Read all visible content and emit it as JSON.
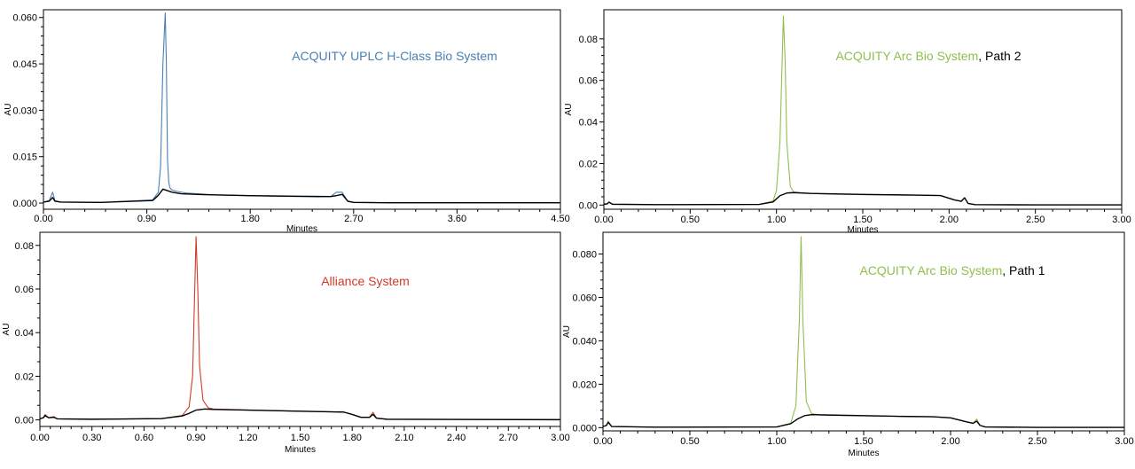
{
  "chart_data": [
    {
      "type": "line",
      "id": "tl",
      "annotation": [
        {
          "text": "ACQUITY UPLC H-Class Bio System",
          "color": "#4a7fb5"
        }
      ],
      "xlabel": "Minutes",
      "ylabel": "AU",
      "xlim": [
        0,
        4.5
      ],
      "ylim": [
        -0.002,
        0.0625
      ],
      "xticks": [
        "0.00",
        "0.90",
        "1.80",
        "2.70",
        "3.60",
        "4.50"
      ],
      "xtick_values": [
        0,
        0.9,
        1.8,
        2.7,
        3.6,
        4.5
      ],
      "yticks": [
        "0.000",
        "0.015",
        "0.030",
        "0.045",
        "0.060"
      ],
      "ytick_values": [
        0,
        0.015,
        0.03,
        0.045,
        0.06
      ],
      "series": [
        {
          "color": "#4a7fb5",
          "x": [
            0,
            0.05,
            0.08,
            0.1,
            0.15,
            0.5,
            0.95,
            1.0,
            1.02,
            1.04,
            1.06,
            1.07,
            1.08,
            1.09,
            1.1,
            1.12,
            1.16,
            1.25,
            1.5,
            2.0,
            2.4,
            2.5,
            2.55,
            2.6,
            2.65,
            2.7,
            3.0,
            3.5,
            4.0,
            4.5
          ],
          "y": [
            0.0003,
            0.0008,
            0.0035,
            0.0008,
            0.0003,
            0.0002,
            0.001,
            0.0035,
            0.012,
            0.045,
            0.0615,
            0.045,
            0.014,
            0.007,
            0.005,
            0.0042,
            0.0038,
            0.0032,
            0.0026,
            0.0022,
            0.002,
            0.0021,
            0.0035,
            0.0035,
            0.0005,
            0.0002,
            0.0001,
            0.0001,
            0.0001,
            0.0001
          ]
        },
        {
          "color": "#000000",
          "x": [
            0,
            0.05,
            0.08,
            0.1,
            0.15,
            0.5,
            0.95,
            1.0,
            1.04,
            1.08,
            1.12,
            1.2,
            1.4,
            1.8,
            2.2,
            2.5,
            2.55,
            2.6,
            2.65,
            2.7,
            3.0,
            3.5,
            4.0,
            4.5
          ],
          "y": [
            0.0003,
            0.0006,
            0.0018,
            0.0006,
            0.0003,
            0.0002,
            0.0008,
            0.0025,
            0.0045,
            0.004,
            0.0035,
            0.003,
            0.0027,
            0.0024,
            0.0022,
            0.0021,
            0.0024,
            0.0028,
            0.0006,
            0.0002,
            0.0001,
            0.0001,
            0.0001,
            0.0001
          ]
        }
      ]
    },
    {
      "type": "line",
      "id": "tr",
      "annotation": [
        {
          "text": "ACQUITY Arc Bio System",
          "color": "#8fbf4f"
        },
        {
          "text": ", Path 2",
          "color": "#000000"
        }
      ],
      "xlabel": "Minutes",
      "ylabel": "AU",
      "xlim": [
        0,
        3.0
      ],
      "ylim": [
        -0.002,
        0.094
      ],
      "xticks": [
        "0.00",
        "0.50",
        "1.00",
        "1.50",
        "2.00",
        "2.50",
        "3.00"
      ],
      "xtick_values": [
        0,
        0.5,
        1.0,
        1.5,
        2.0,
        2.5,
        3.0
      ],
      "yticks": [
        "0.00",
        "0.02",
        "0.04",
        "0.06",
        "0.08"
      ],
      "ytick_values": [
        0,
        0.02,
        0.04,
        0.06,
        0.08
      ],
      "series": [
        {
          "color": "#8fbf4f",
          "x": [
            0,
            0.02,
            0.03,
            0.05,
            0.3,
            0.9,
            0.98,
            1.0,
            1.02,
            1.04,
            1.05,
            1.06,
            1.08,
            1.1,
            1.15,
            1.3,
            1.5,
            1.8,
            1.95,
            2.03,
            2.07,
            2.09,
            2.11,
            2.15,
            2.5,
            3.0
          ],
          "y": [
            0.0004,
            0.0006,
            0.0014,
            0.0004,
            0.0002,
            0.0003,
            0.002,
            0.007,
            0.03,
            0.091,
            0.07,
            0.03,
            0.009,
            0.0063,
            0.0058,
            0.0053,
            0.005,
            0.0048,
            0.0046,
            0.0025,
            0.0018,
            0.0035,
            0.0008,
            0.0002,
            0.0001,
            0.0001
          ]
        },
        {
          "color": "#000000",
          "x": [
            0,
            0.02,
            0.03,
            0.05,
            0.3,
            0.9,
            0.98,
            1.02,
            1.06,
            1.1,
            1.2,
            1.5,
            1.8,
            1.95,
            2.03,
            2.07,
            2.09,
            2.11,
            2.15,
            2.5,
            3.0
          ],
          "y": [
            0.0004,
            0.0006,
            0.0014,
            0.0004,
            0.0002,
            0.0003,
            0.0015,
            0.0045,
            0.0058,
            0.006,
            0.0056,
            0.0051,
            0.0048,
            0.0046,
            0.0025,
            0.0018,
            0.0035,
            0.0008,
            0.0002,
            0.0001,
            0.0001
          ]
        }
      ]
    },
    {
      "type": "line",
      "id": "bl",
      "annotation": [
        {
          "text": "Alliance System",
          "color": "#d13a2a"
        }
      ],
      "xlabel": "Minutes",
      "ylabel": "AU",
      "xlim": [
        0,
        3.0
      ],
      "ylim": [
        -0.003,
        0.086
      ],
      "xticks": [
        "0.00",
        "0.30",
        "0.60",
        "0.90",
        "1.20",
        "1.50",
        "1.80",
        "2.10",
        "2.40",
        "2.70",
        "3.00"
      ],
      "xtick_values": [
        0,
        0.3,
        0.6,
        0.9,
        1.2,
        1.5,
        1.8,
        2.1,
        2.4,
        2.7,
        3.0
      ],
      "yticks": [
        "0.00",
        "0.02",
        "0.04",
        "0.06",
        "0.08"
      ],
      "ytick_values": [
        0,
        0.02,
        0.04,
        0.06,
        0.08
      ],
      "series": [
        {
          "color": "#d13a2a",
          "x": [
            0,
            0.02,
            0.03,
            0.05,
            0.08,
            0.1,
            0.3,
            0.7,
            0.82,
            0.86,
            0.88,
            0.9,
            0.91,
            0.92,
            0.94,
            0.97,
            1.0,
            1.2,
            1.5,
            1.75,
            1.8,
            1.85,
            1.9,
            1.92,
            1.94,
            2.0,
            3.0
          ],
          "y": [
            0.0005,
            0.001,
            0.0025,
            0.001,
            0.0015,
            0.0005,
            0.0003,
            0.0006,
            0.002,
            0.006,
            0.02,
            0.084,
            0.06,
            0.025,
            0.009,
            0.0055,
            0.005,
            0.0045,
            0.004,
            0.0036,
            0.0025,
            0.0012,
            0.0012,
            0.0035,
            0.0008,
            0.0003,
            0.0001
          ]
        },
        {
          "color": "#000000",
          "x": [
            0,
            0.02,
            0.03,
            0.05,
            0.08,
            0.1,
            0.3,
            0.7,
            0.82,
            0.86,
            0.9,
            0.95,
            1.0,
            1.2,
            1.5,
            1.75,
            1.8,
            1.85,
            1.9,
            1.92,
            1.94,
            2.0,
            3.0
          ],
          "y": [
            0.0005,
            0.001,
            0.002,
            0.001,
            0.0012,
            0.0005,
            0.0003,
            0.0006,
            0.0018,
            0.003,
            0.0045,
            0.005,
            0.0048,
            0.0045,
            0.004,
            0.0036,
            0.0025,
            0.0012,
            0.0012,
            0.0025,
            0.0008,
            0.0003,
            0.0001
          ]
        }
      ]
    },
    {
      "type": "line",
      "id": "br",
      "annotation": [
        {
          "text": "ACQUITY Arc Bio System",
          "color": "#8fbf4f"
        },
        {
          "text": ", Path 1",
          "color": "#000000"
        }
      ],
      "xlabel": "Minutes",
      "ylabel": "AU",
      "xlim": [
        0,
        3.0
      ],
      "ylim": [
        -0.0015,
        0.09
      ],
      "xticks": [
        "0.00",
        "0.50",
        "1.00",
        "1.50",
        "2.00",
        "2.50",
        "3.00"
      ],
      "xtick_values": [
        0,
        0.5,
        1.0,
        1.5,
        2.0,
        2.5,
        3.0
      ],
      "yticks": [
        "0.000",
        "0.020",
        "0.040",
        "0.060",
        "0.080"
      ],
      "ytick_values": [
        0,
        0.02,
        0.04,
        0.06,
        0.08
      ],
      "series": [
        {
          "color": "#8fbf4f",
          "x": [
            0,
            0.02,
            0.03,
            0.05,
            0.3,
            1.0,
            1.08,
            1.11,
            1.13,
            1.14,
            1.15,
            1.17,
            1.2,
            1.25,
            1.4,
            1.7,
            1.9,
            2.0,
            2.1,
            2.13,
            2.15,
            2.17,
            2.2,
            2.5,
            3.0
          ],
          "y": [
            0.0005,
            0.001,
            0.003,
            0.0005,
            0.0002,
            0.0003,
            0.002,
            0.01,
            0.05,
            0.088,
            0.05,
            0.012,
            0.0065,
            0.0058,
            0.0055,
            0.0052,
            0.005,
            0.0045,
            0.0025,
            0.002,
            0.004,
            0.001,
            0.0003,
            0.0001,
            0.0001
          ]
        },
        {
          "color": "#000000",
          "x": [
            0,
            0.02,
            0.03,
            0.05,
            0.3,
            1.0,
            1.08,
            1.12,
            1.16,
            1.2,
            1.3,
            1.5,
            1.7,
            1.9,
            2.0,
            2.1,
            2.13,
            2.15,
            2.17,
            2.2,
            2.5,
            3.0
          ],
          "y": [
            0.0005,
            0.001,
            0.0025,
            0.0005,
            0.0002,
            0.0003,
            0.0018,
            0.004,
            0.0055,
            0.006,
            0.0058,
            0.0055,
            0.0052,
            0.005,
            0.0045,
            0.0025,
            0.002,
            0.003,
            0.001,
            0.0003,
            0.0001,
            0.0001
          ]
        }
      ]
    }
  ]
}
